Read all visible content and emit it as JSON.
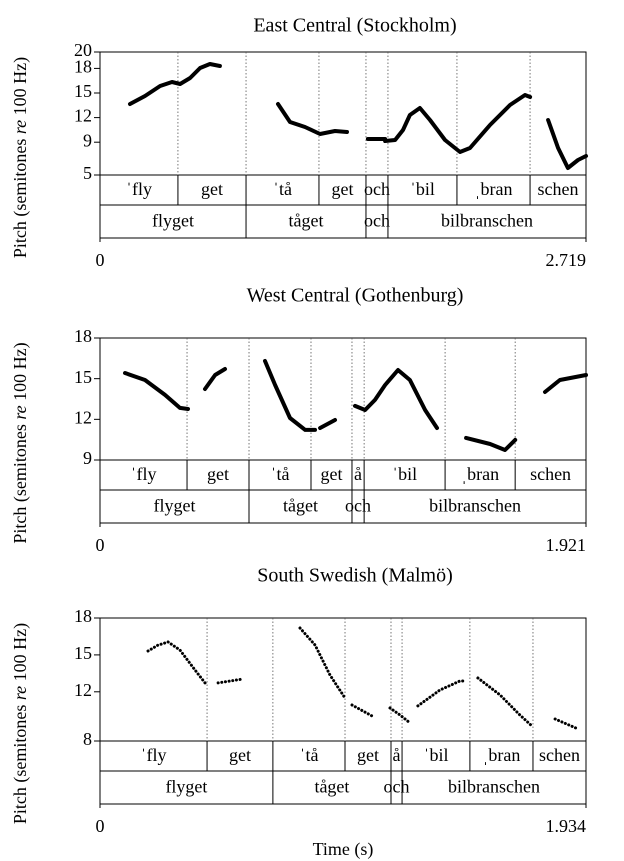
{
  "chart_data": [
    {
      "type": "line",
      "title": "East Central (Stockholm)",
      "ylabel": [
        "Pitch (semitones ",
        "re",
        " 100 Hz)"
      ],
      "xlim": [
        0,
        2.719
      ],
      "xticks": [
        0,
        2.719
      ],
      "ylim": [
        5,
        20
      ],
      "yticks": [
        5,
        9,
        12,
        15,
        18,
        20
      ],
      "color": "#000000",
      "line_style": "solid",
      "x": [
        0.168,
        0.252,
        0.336,
        0.403,
        0.448,
        0.504,
        0.56,
        0.615,
        0.671,
        null,
        0.996,
        1.063,
        1.147,
        1.231,
        1.315,
        1.382,
        null,
        1.499,
        1.595,
        null,
        1.595,
        1.651,
        1.695,
        1.734,
        1.79,
        1.846,
        1.93,
        2.014,
        2.07,
        2.182,
        2.294,
        2.378,
        2.406,
        null,
        2.507,
        2.563,
        2.618,
        2.674,
        2.719
      ],
      "values": [
        13.66,
        14.63,
        15.85,
        16.34,
        16.1,
        16.83,
        18.05,
        18.54,
        18.29,
        null,
        13.66,
        11.46,
        10.85,
        10.0,
        10.37,
        10.24,
        null,
        9.39,
        9.39,
        null,
        9.15,
        9.27,
        10.49,
        12.32,
        13.17,
        11.71,
        9.27,
        7.8,
        8.29,
        11.1,
        13.54,
        14.76,
        14.51,
        null,
        11.71,
        8.29,
        5.85,
        6.83,
        7.32
      ],
      "tiers": [
        {
          "labels": [
            "ˈfly",
            "get",
            "ˈtå",
            "get",
            "och",
            "ˈbil",
            "ˌbran",
            "schen"
          ],
          "boundaries": [
            0.436,
            0.817,
            1.225,
            1.488,
            1.611,
            1.997,
            2.406
          ]
        },
        {
          "labels": [
            "flyget",
            "tåget",
            "och",
            "bilbranschen"
          ],
          "boundaries": [
            0.817,
            1.488,
            1.611
          ]
        }
      ]
    },
    {
      "type": "line",
      "title": "West Central (Gothenburg)",
      "ylabel": [
        "Pitch (semitones ",
        "re",
        " 100 Hz)"
      ],
      "xlim": [
        0,
        1.921
      ],
      "xticks": [
        0,
        1.921
      ],
      "ylim": [
        9,
        18
      ],
      "yticks": [
        9,
        12,
        15,
        18
      ],
      "color": "#000000",
      "line_style": "solid",
      "x": [
        0.099,
        0.178,
        0.257,
        0.316,
        0.348,
        null,
        0.415,
        0.455,
        0.494,
        null,
        0.652,
        0.692,
        0.751,
        0.811,
        0.85,
        null,
        0.87,
        0.929,
        null,
        1.008,
        1.048,
        1.087,
        1.127,
        1.178,
        1.225,
        1.285,
        1.332,
        null,
        1.447,
        1.542,
        1.601,
        1.641,
        null,
        1.759,
        1.818,
        1.921
      ],
      "values": [
        15.42,
        14.9,
        13.8,
        12.84,
        12.76,
        null,
        14.24,
        15.27,
        15.71,
        null,
        16.3,
        14.53,
        12.1,
        11.22,
        11.22,
        null,
        11.36,
        11.95,
        null,
        12.99,
        12.69,
        13.43,
        14.53,
        15.64,
        14.9,
        12.69,
        11.36,
        null,
        10.63,
        10.18,
        9.74,
        10.48,
        null,
        14.02,
        14.9,
        15.27
      ],
      "tiers": [
        {
          "labels": [
            "ˈfly",
            "get",
            "ˈtå",
            "get",
            "å",
            "ˈbil",
            "ˌbran",
            "schen"
          ],
          "boundaries": [
            0.344,
            0.589,
            0.834,
            0.996,
            1.044,
            1.364,
            1.641
          ]
        },
        {
          "labels": [
            "flyget",
            "tåget",
            "och",
            "bilbranschen"
          ],
          "boundaries": [
            0.589,
            0.996,
            1.044
          ]
        }
      ]
    },
    {
      "type": "line",
      "title": "South Swedish (Malmö)",
      "ylabel": [
        "Pitch (semitones ",
        "re",
        " 100 Hz)"
      ],
      "xlabel": "Time (s)",
      "xlim": [
        0,
        1.934
      ],
      "xticks": [
        0,
        1.934
      ],
      "ylim": [
        8,
        18
      ],
      "yticks": [
        8,
        12,
        15,
        18
      ],
      "color": "#000000",
      "line_style": "dotted",
      "x": [
        0.191,
        0.231,
        0.271,
        0.318,
        0.378,
        0.418,
        null,
        0.47,
        0.569,
        null,
        0.796,
        0.856,
        0.915,
        0.975,
        null,
        1.003,
        1.083,
        null,
        1.154,
        1.194,
        1.234,
        null,
        1.265,
        1.353,
        1.432,
        1.452,
        null,
        1.504,
        1.592,
        1.671,
        1.723,
        null,
        1.811,
        1.894
      ],
      "values": [
        15.32,
        15.8,
        16.05,
        15.4,
        13.77,
        12.72,
        null,
        12.72,
        13.04,
        null,
        17.19,
        15.8,
        13.37,
        11.5,
        null,
        10.93,
        10.03,
        null,
        10.68,
        10.11,
        9.46,
        null,
        10.85,
        12.15,
        12.88,
        12.88,
        null,
        13.12,
        11.74,
        10.11,
        9.14,
        null,
        9.79,
        9.06
      ],
      "tiers": [
        {
          "labels": [
            "ˈfly",
            "get",
            "ˈtå",
            "get",
            "å",
            "ˈbil",
            "ˌbran",
            "schen"
          ],
          "boundaries": [
            0.426,
            0.688,
            0.975,
            1.158,
            1.202,
            1.472,
            1.723
          ]
        },
        {
          "labels": [
            "flyget",
            "tåget",
            "och",
            "bilbranschen"
          ],
          "boundaries": [
            0.688,
            1.158,
            1.202
          ]
        }
      ]
    }
  ]
}
